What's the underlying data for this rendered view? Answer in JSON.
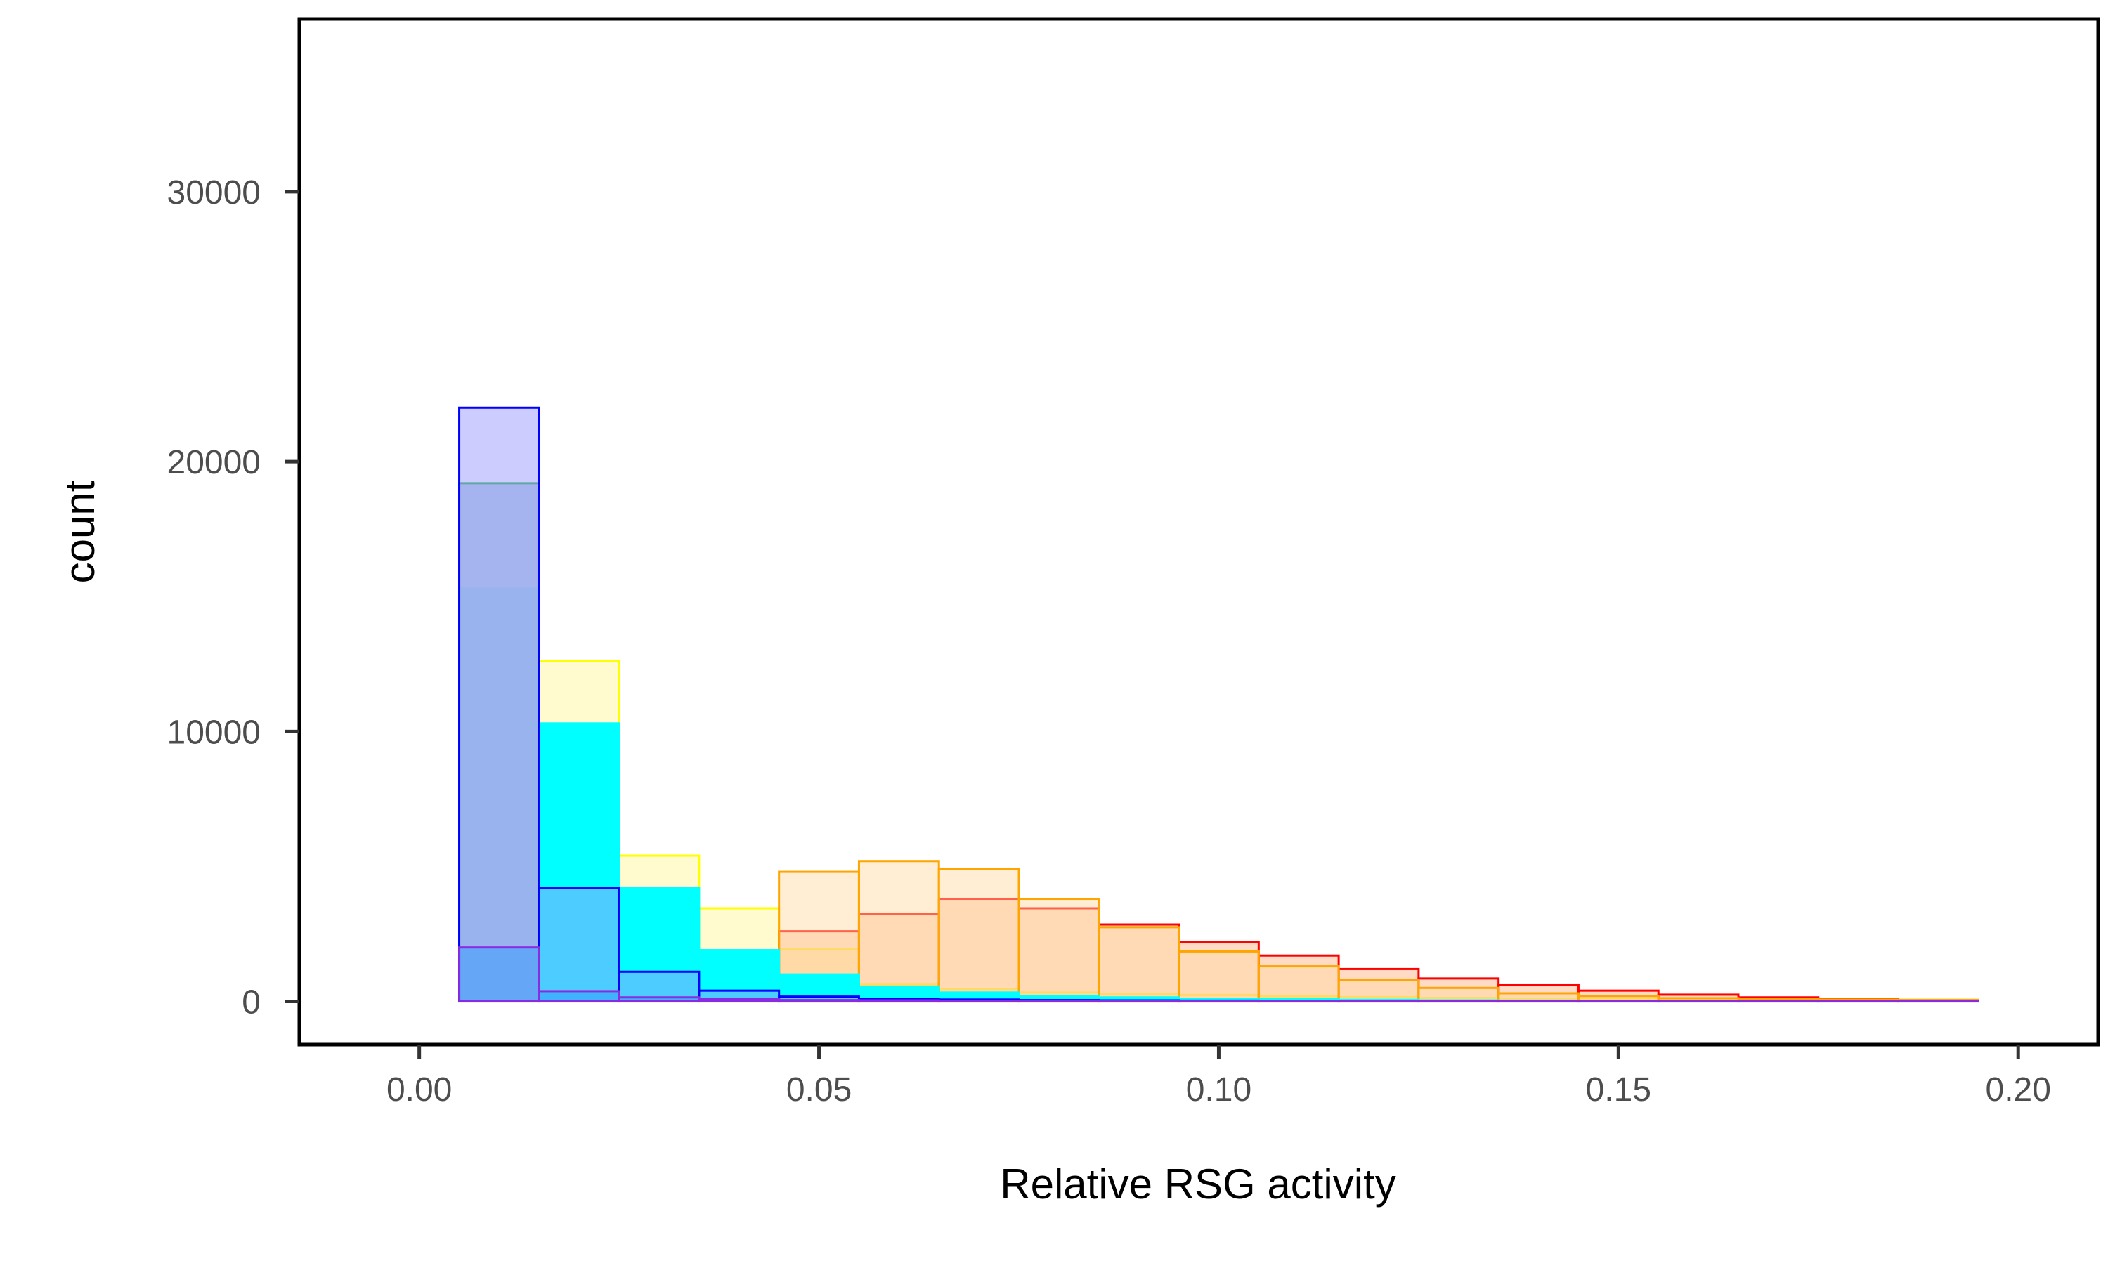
{
  "chart_data": {
    "type": "bar",
    "stacked": false,
    "overlapping_histograms": true,
    "xlabel": "Relative RSG activity",
    "ylabel": "count",
    "xlim": [
      -0.015,
      0.21
    ],
    "ylim": [
      -1600,
      36400
    ],
    "x_ticks": [
      0.0,
      0.05,
      0.1,
      0.15,
      0.2
    ],
    "x_tick_labels": [
      "0.00",
      "0.05",
      "0.10",
      "0.15",
      "0.20"
    ],
    "y_ticks": [
      0,
      10000,
      20000,
      30000
    ],
    "y_tick_labels": [
      "0",
      "10000",
      "20000",
      "30000"
    ],
    "grid": false,
    "bin_width": 0.01,
    "bin_centers": [
      0.01,
      0.02,
      0.03,
      0.04,
      0.05,
      0.06,
      0.07,
      0.08,
      0.09,
      0.1,
      0.11,
      0.12,
      0.13,
      0.14,
      0.15,
      0.16,
      0.17,
      0.18,
      0.19
    ],
    "series": [
      {
        "fill": "#fff7a8",
        "fill_opacity": 0.55,
        "stroke": "#ffff00",
        "values": [
          0,
          12600,
          5400,
          3450,
          1950,
          620,
          460,
          330,
          280,
          240,
          190,
          160,
          130,
          110,
          95,
          80,
          70,
          60,
          50
        ]
      },
      {
        "fill": "#ffb080",
        "fill_opacity": 0.45,
        "stroke": "#ff0000",
        "values": [
          0,
          0,
          0,
          0,
          2600,
          3250,
          3800,
          3450,
          2850,
          2200,
          1700,
          1200,
          850,
          600,
          400,
          250,
          150,
          80,
          40
        ]
      },
      {
        "fill": "#ffd9a0",
        "fill_opacity": 0.45,
        "stroke": "#ffa500",
        "values": [
          0,
          0,
          0,
          0,
          4800,
          5200,
          4900,
          3800,
          2750,
          1850,
          1300,
          800,
          500,
          300,
          200,
          120,
          90,
          70,
          60
        ]
      },
      {
        "fill": "#00ffff",
        "fill_opacity": 1.0,
        "stroke": "#00ffff",
        "values": [
          15300,
          10300,
          4200,
          1900,
          1000,
          550,
          330,
          200,
          150,
          100,
          80,
          60,
          40,
          30,
          20,
          15,
          10,
          8,
          5
        ]
      },
      {
        "fill": "#a8c8d8",
        "fill_opacity": 0.9,
        "stroke": "#2db34a",
        "values": [
          19200,
          0,
          0,
          0,
          0,
          0,
          0,
          0,
          0,
          0,
          0,
          0,
          0,
          0,
          0,
          0,
          0,
          0,
          0
        ]
      },
      {
        "fill": "#9999ff",
        "fill_opacity": 0.5,
        "stroke": "#0000ff",
        "values": [
          22000,
          4200,
          1100,
          400,
          180,
          100,
          70,
          50,
          40,
          30,
          20,
          15,
          10,
          8,
          6,
          5,
          4,
          3,
          2
        ]
      },
      {
        "fill": "#3399ff",
        "fill_opacity": 0.5,
        "stroke": "#8a2be2",
        "values": [
          2000,
          380,
          150,
          80,
          50,
          40,
          30,
          25,
          20,
          18,
          15,
          12,
          10,
          8,
          6,
          5,
          4,
          3,
          2
        ]
      }
    ]
  }
}
